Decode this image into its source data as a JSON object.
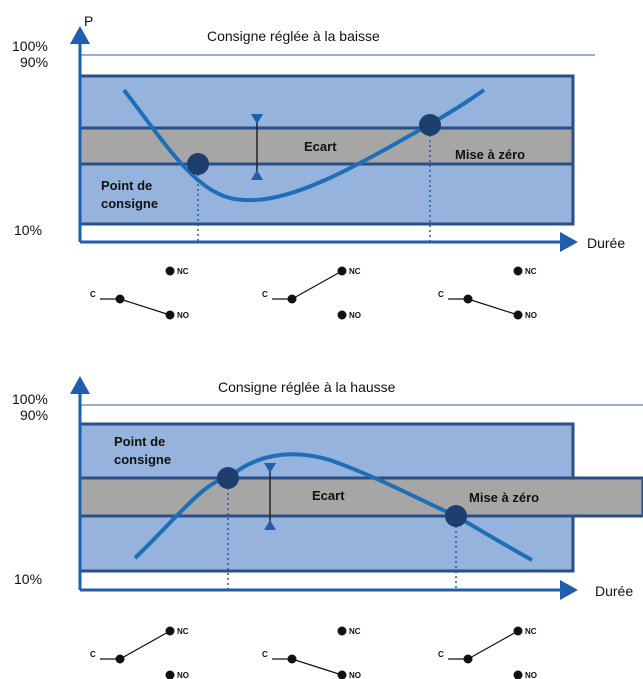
{
  "colors": {
    "band": "#95b3dd",
    "band_border": "#2a4f86",
    "gray_band": "#a6a6a6",
    "curve": "#1f6fb7",
    "axis": "#1f5eac",
    "thin_line": "#5b7fb8",
    "dot": "#1e3f6d"
  },
  "icons": {
    "axis_arrow": "triangle-arrow",
    "switch_contact": "filled-circle"
  },
  "top": {
    "axis_label_p": "P",
    "y_100": "100%",
    "y_90": "90%",
    "y_10": "10%",
    "title": "Consigne réglée à la baisse",
    "ecart": "Ecart",
    "mise_a_zero": "Mise à zéro",
    "point_de": "Point de",
    "consigne": "consigne",
    "duree": "Durée",
    "switches": [
      {
        "nc": "NC",
        "c": "C",
        "no": "NO",
        "state": "NO"
      },
      {
        "nc": "NC",
        "c": "C",
        "no": "NO",
        "state": "NC"
      },
      {
        "nc": "NC",
        "c": "C",
        "no": "NO",
        "state": "NO"
      }
    ]
  },
  "bottom": {
    "y_100": "100%",
    "y_90": "90%",
    "y_10": "10%",
    "title": "Consigne réglée à la hausse",
    "ecart": "Ecart",
    "mise_a_zero": "Mise à zéro",
    "point_de": "Point de",
    "consigne": "consigne",
    "duree": "Durée",
    "switches": [
      {
        "nc": "NC",
        "c": "C",
        "no": "NO",
        "state": "NC"
      },
      {
        "nc": "NC",
        "c": "C",
        "no": "NO",
        "state": "NO"
      },
      {
        "nc": "NC",
        "c": "C",
        "no": "NO",
        "state": "NC"
      }
    ]
  }
}
